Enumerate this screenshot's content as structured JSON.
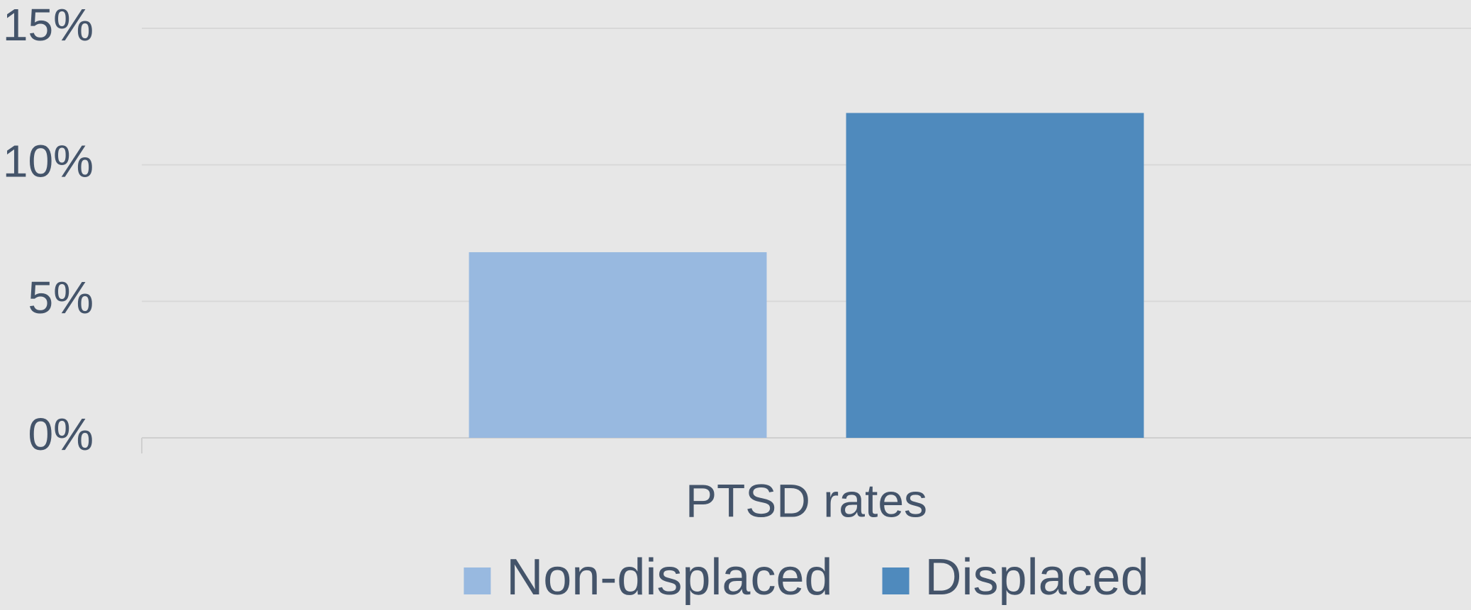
{
  "chart_data": {
    "type": "bar",
    "categories": [
      "PTSD rates"
    ],
    "series": [
      {
        "name": "Non-displaced",
        "color": "#98b9e0",
        "values": [
          6.8
        ]
      },
      {
        "name": "Displaced",
        "color": "#4f8abd",
        "values": [
          11.9
        ]
      }
    ],
    "ylim": [
      0,
      15
    ],
    "yticks": [
      {
        "value": 0,
        "label": "0%"
      },
      {
        "value": 5,
        "label": "5%"
      },
      {
        "value": 10,
        "label": "10%"
      },
      {
        "value": 15,
        "label": "15%"
      }
    ],
    "grid": true,
    "legend": "bottom"
  }
}
